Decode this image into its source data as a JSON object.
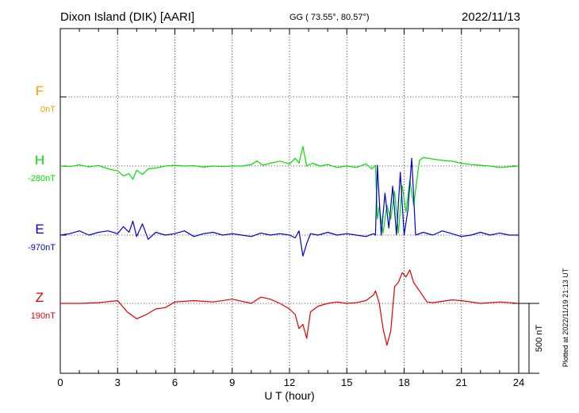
{
  "header": {
    "station": "Dixon Island (DIK)  [AARI]",
    "coords": "GG ( 73.55°,  80.57°)",
    "date": "2022/11/13"
  },
  "side_note": "Plotted at 2022/11/19 21:13 UT",
  "chart_data": {
    "type": "line",
    "xlabel": "U T (hour)",
    "xlim": [
      0,
      24
    ],
    "xticks": [
      "0",
      "3",
      "6",
      "9",
      "12",
      "15",
      "18",
      "21",
      "24"
    ],
    "scale_label": "500 nT",
    "scale_nT": 500,
    "series": [
      {
        "name": "F",
        "baseline_label": "0nT",
        "color": "#f0a000",
        "x": [],
        "y": []
      },
      {
        "name": "H",
        "baseline_label": "-280nT",
        "color": "#00e000",
        "x": [
          0,
          0.5,
          1,
          1.5,
          2,
          2.5,
          3,
          3.3,
          3.6,
          3.8,
          4,
          4.3,
          4.6,
          5,
          5.5,
          6,
          6.5,
          7,
          7.5,
          8,
          8.5,
          9,
          9.5,
          10,
          10.3,
          10.6,
          11,
          11.5,
          12,
          12.3,
          12.5,
          12.7,
          12.9,
          13.2,
          13.6,
          14,
          14.5,
          15,
          15.5,
          16,
          16.3,
          16.5,
          16.6,
          16.7,
          16.9,
          17.1,
          17.3,
          17.5,
          17.7,
          17.9,
          18.1,
          18.3,
          18.5,
          18.8,
          19,
          19.5,
          20,
          20.5,
          21,
          21.5,
          22,
          22.5,
          23,
          23.5,
          24
        ],
        "y": [
          0,
          -4,
          8,
          -6,
          4,
          -20,
          -35,
          -70,
          -55,
          -95,
          -30,
          -60,
          -20,
          -15,
          0,
          5,
          0,
          2,
          -8,
          0,
          -4,
          0,
          0,
          10,
          35,
          5,
          20,
          35,
          15,
          55,
          20,
          140,
          0,
          20,
          0,
          10,
          -10,
          0,
          -10,
          15,
          -20,
          5,
          -380,
          -290,
          -480,
          -280,
          -380,
          -180,
          -480,
          -140,
          -330,
          -100,
          -280,
          40,
          60,
          50,
          40,
          35,
          20,
          10,
          5,
          0,
          -10,
          -5,
          0
        ]
      },
      {
        "name": "E",
        "baseline_label": "-970nT",
        "color": "#0000d0",
        "x": [
          0,
          0.5,
          1,
          1.5,
          2,
          2.5,
          3,
          3.3,
          3.6,
          3.8,
          4,
          4.3,
          4.6,
          5,
          5.5,
          6,
          6.5,
          7,
          7.5,
          8,
          8.5,
          9,
          9.5,
          10,
          10.5,
          11,
          11.5,
          12,
          12.3,
          12.5,
          12.7,
          12.9,
          13.1,
          13.5,
          14,
          14.5,
          15,
          15.5,
          16,
          16.4,
          16.5,
          16.6,
          16.8,
          17,
          17.2,
          17.4,
          17.6,
          17.8,
          18,
          18.2,
          18.4,
          18.6,
          19,
          19.5,
          20,
          20.5,
          21,
          21.5,
          22,
          22.5,
          23,
          23.5,
          24
        ],
        "y": [
          0,
          10,
          30,
          0,
          20,
          30,
          10,
          60,
          20,
          100,
          -10,
          80,
          -30,
          20,
          0,
          10,
          30,
          -10,
          10,
          20,
          0,
          10,
          0,
          -10,
          15,
          0,
          10,
          0,
          -20,
          30,
          -150,
          -60,
          10,
          0,
          20,
          0,
          10,
          0,
          -10,
          10,
          0,
          500,
          0,
          300,
          50,
          350,
          0,
          450,
          0,
          180,
          550,
          0,
          20,
          0,
          30,
          10,
          -10,
          0,
          20,
          0,
          15,
          0,
          0
        ]
      },
      {
        "name": "Z",
        "baseline_label": "190nT",
        "color": "#e00000",
        "x": [
          0,
          1,
          2,
          3,
          3.5,
          4,
          4.5,
          5,
          5.5,
          6,
          7,
          8,
          9,
          10,
          10.5,
          11,
          11.5,
          12,
          12.3,
          12.5,
          12.7,
          12.9,
          13.1,
          13.5,
          14,
          14.5,
          15,
          15.5,
          16,
          16.4,
          16.5,
          16.7,
          16.9,
          17.1,
          17.3,
          17.5,
          17.7,
          17.9,
          18.1,
          18.3,
          18.5,
          18.8,
          19,
          19.2,
          19.5,
          20,
          20.5,
          21,
          22,
          23,
          24
        ],
        "y": [
          0,
          0,
          5,
          20,
          -60,
          -110,
          -80,
          -40,
          -30,
          10,
          20,
          10,
          30,
          0,
          45,
          30,
          0,
          -40,
          -80,
          -180,
          -150,
          -250,
          -60,
          -20,
          0,
          10,
          0,
          5,
          20,
          60,
          90,
          0,
          -180,
          -300,
          -200,
          120,
          150,
          220,
          190,
          240,
          150,
          90,
          50,
          10,
          5,
          15,
          25,
          20,
          0,
          10,
          0
        ]
      }
    ]
  }
}
